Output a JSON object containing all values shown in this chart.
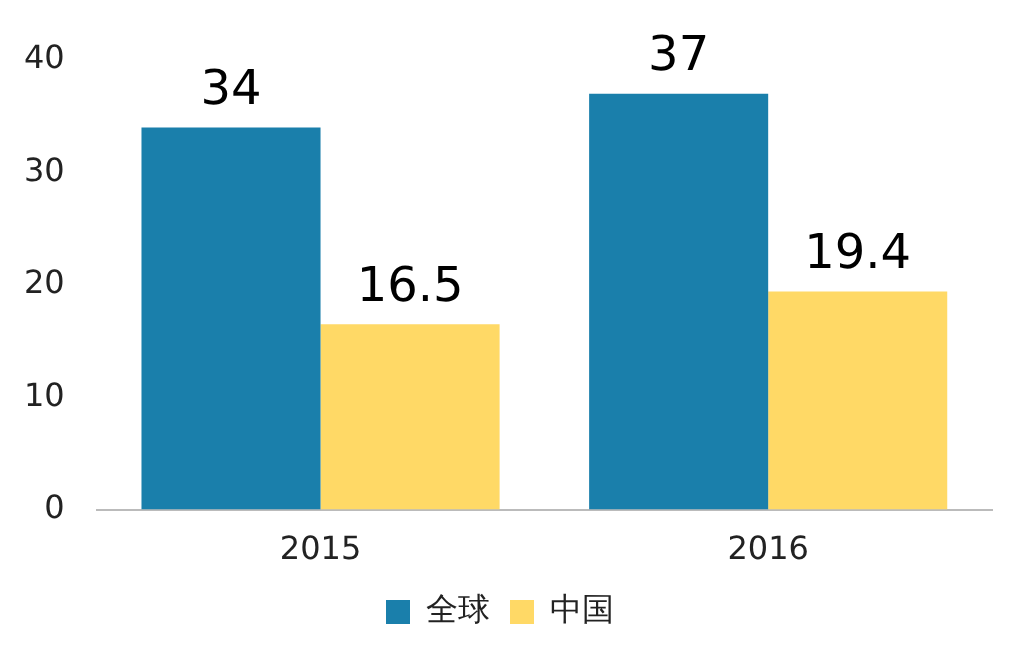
{
  "chart_data": {
    "type": "bar",
    "categories": [
      "2015",
      "2016"
    ],
    "series": [
      {
        "name": "全球",
        "color": "#1a7fab",
        "values": [
          34,
          37
        ]
      },
      {
        "name": "中国",
        "color": "#ffd966",
        "values": [
          16.5,
          19.4
        ]
      }
    ],
    "ylim": [
      0,
      40
    ],
    "yticks": [
      0,
      10,
      20,
      30,
      40
    ],
    "grid": false,
    "legend": "bottom",
    "data_labels": true
  }
}
